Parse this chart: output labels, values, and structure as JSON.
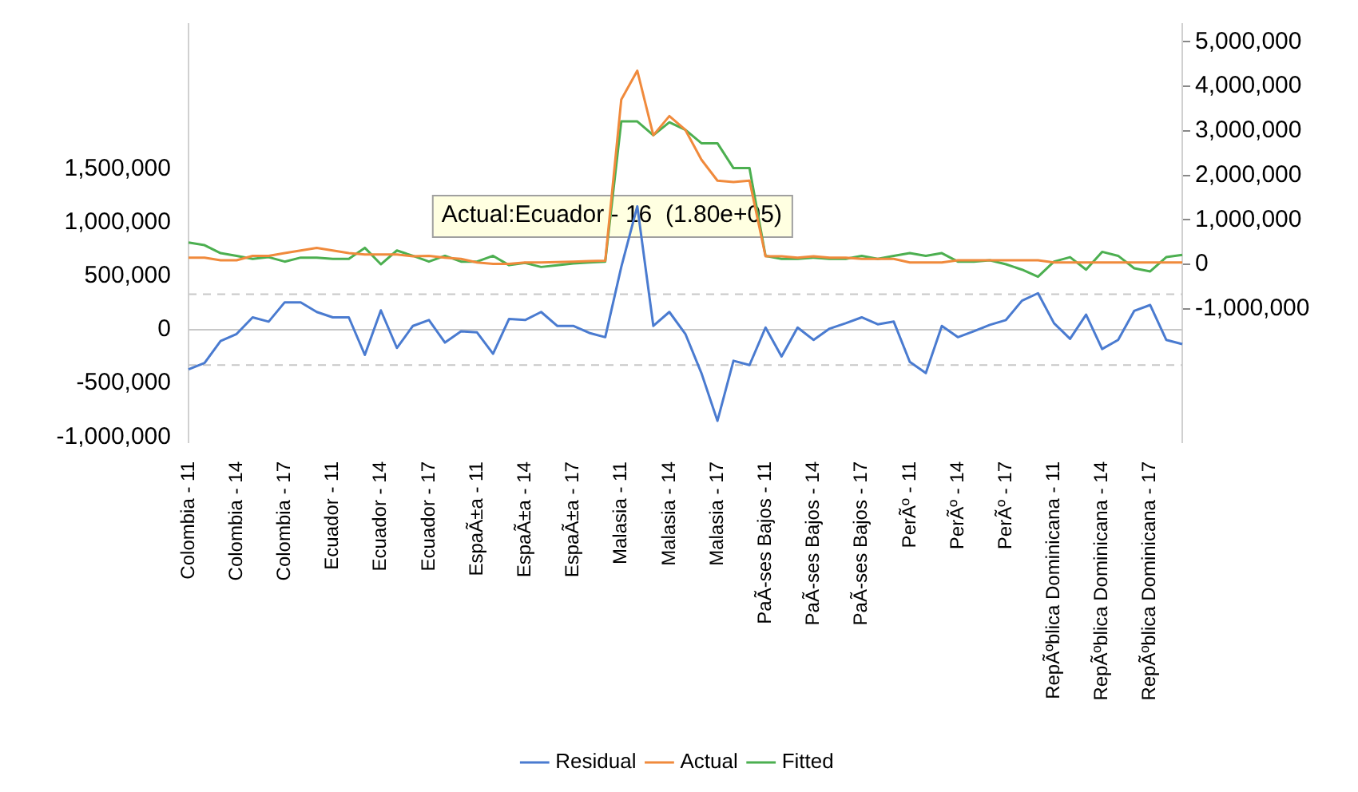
{
  "chart_data": {
    "type": "line",
    "categories": [
      "Colombia - 11",
      null,
      null,
      "Colombia - 14",
      null,
      null,
      "Colombia - 17",
      null,
      null,
      "Ecuador - 11",
      null,
      null,
      "Ecuador - 14",
      null,
      null,
      "Ecuador - 17",
      null,
      null,
      "EspaÃ±a - 11",
      null,
      null,
      "EspaÃ±a - 14",
      null,
      null,
      "EspaÃ±a - 17",
      null,
      null,
      "Malasia - 11",
      null,
      null,
      "Malasia - 14",
      null,
      null,
      "Malasia - 17",
      null,
      null,
      "PaÃ-ses Bajos - 11",
      null,
      null,
      "PaÃ-ses Bajos - 14",
      null,
      null,
      "PaÃ-ses Bajos - 17",
      null,
      null,
      "PerÃº - 11",
      null,
      null,
      "PerÃº - 14",
      null,
      null,
      "PerÃº - 17",
      null,
      null,
      "RepÃºblica Dominicana - 11",
      null,
      null,
      "RepÃºblica Dominicana - 14",
      null,
      null,
      "RepÃºblica Dominicana - 17",
      null,
      null
    ],
    "series": [
      {
        "name": "Residual",
        "color": "#4a7bd0",
        "axis": "y",
        "values": [
          -370000,
          -310000,
          -105000,
          -40000,
          115000,
          75000,
          255000,
          255000,
          165000,
          115000,
          115000,
          -235000,
          180000,
          -170000,
          35000,
          90000,
          -120000,
          -15000,
          -25000,
          -225000,
          100000,
          90000,
          165000,
          35000,
          35000,
          -30000,
          -70000,
          585000,
          1150000,
          35000,
          165000,
          -40000,
          -405000,
          -850000,
          -290000,
          -330000,
          20000,
          -250000,
          20000,
          -95000,
          10000,
          60000,
          115000,
          50000,
          75000,
          -300000,
          -405000,
          35000,
          -70000,
          -15000,
          45000,
          90000,
          270000,
          340000,
          60000,
          -85000,
          140000,
          -180000,
          -95000,
          175000,
          230000,
          -95000,
          -135000
        ]
      },
      {
        "name": "Actual",
        "color": "#f08a3c",
        "axis": "y2",
        "values": [
          150000,
          150000,
          90000,
          90000,
          190000,
          190000,
          250000,
          310000,
          370000,
          310000,
          250000,
          220000,
          220000,
          220000,
          180000,
          190000,
          150000,
          120000,
          40000,
          10000,
          10000,
          40000,
          40000,
          50000,
          60000,
          70000,
          80000,
          3700000,
          4350000,
          2900000,
          3330000,
          3020000,
          2350000,
          1880000,
          1850000,
          1880000,
          180000,
          180000,
          150000,
          180000,
          150000,
          150000,
          120000,
          120000,
          120000,
          40000,
          40000,
          40000,
          90000,
          90000,
          90000,
          90000,
          90000,
          90000,
          40000,
          40000,
          40000,
          40000,
          40000,
          40000,
          40000,
          40000,
          40000
        ]
      },
      {
        "name": "Fitted",
        "color": "#4caf50",
        "axis": "y2",
        "values": [
          490000,
          430000,
          250000,
          190000,
          120000,
          160000,
          60000,
          150000,
          150000,
          120000,
          120000,
          370000,
          0,
          310000,
          190000,
          60000,
          190000,
          60000,
          60000,
          190000,
          -20000,
          30000,
          -60000,
          -20000,
          20000,
          40000,
          60000,
          3210000,
          3210000,
          2900000,
          3190000,
          3020000,
          2720000,
          2720000,
          2160000,
          2160000,
          190000,
          120000,
          120000,
          150000,
          120000,
          120000,
          190000,
          120000,
          190000,
          250000,
          190000,
          250000,
          60000,
          60000,
          90000,
          0,
          -120000,
          -280000,
          60000,
          160000,
          -120000,
          280000,
          190000,
          -90000,
          -160000,
          160000,
          210000
        ]
      }
    ],
    "ylim": [
      -1050000,
      2850000
    ],
    "yticks": [
      {
        "value": -1000000,
        "label": "-1,000,000"
      },
      {
        "value": -500000,
        "label": "-500,000"
      },
      0,
      {
        "value": 500000,
        "label": "500,000"
      },
      {
        "value": 1000000,
        "label": "1,000,000"
      },
      {
        "value": 1500000,
        "label": "1,500,000"
      }
    ],
    "y2lim": [
      -4000000,
      5400000
    ],
    "y2ticks": [
      {
        "value": -1000000,
        "label": "-1,000,000"
      },
      0,
      {
        "value": 1000000,
        "label": "1,000,000"
      },
      {
        "value": 2000000,
        "label": "2,000,000"
      },
      {
        "value": 3000000,
        "label": "3,000,000"
      },
      {
        "value": 4000000,
        "label": "4,000,000"
      },
      {
        "value": 5000000,
        "label": "5,000,000"
      }
    ],
    "ref_lines": [
      {
        "axis": "y",
        "value": 0,
        "color": "#c8c8c8",
        "line_style": "solid"
      },
      {
        "axis": "y",
        "value": 330000,
        "color": "#c8c8c8",
        "line_style": "dashed"
      },
      {
        "axis": "y",
        "value": -330000,
        "color": "#c8c8c8",
        "line_style": "dashed"
      }
    ],
    "annotations": [
      "Actual:Ecuador - 16  (1.80e+05)"
    ],
    "legend": "bottom",
    "marker": "none",
    "line_style": "solid"
  }
}
